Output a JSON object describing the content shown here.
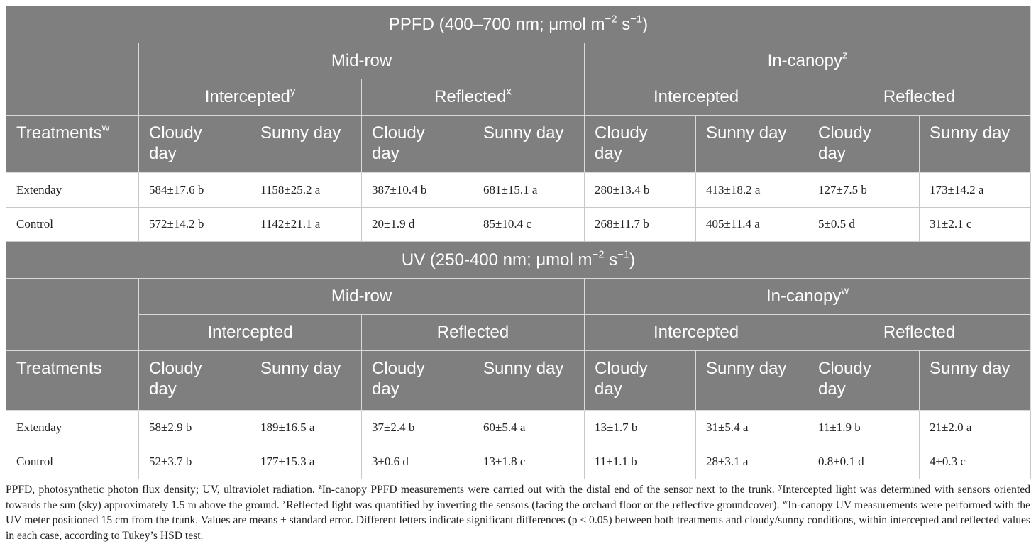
{
  "sections": [
    {
      "title": [
        {
          "text": "PPFD (400–700 nm; μmol m"
        },
        {
          "sup": "−2"
        },
        {
          "text": " s"
        },
        {
          "sup": "−1"
        },
        {
          "text": ")"
        }
      ],
      "groups": [
        {
          "label": [
            {
              "text": "Mid-row"
            }
          ],
          "subgroups": [
            [
              {
                "text": "Intercepted"
              },
              {
                "sup": "y"
              }
            ],
            [
              {
                "text": "Reflected"
              },
              {
                "sup": "x"
              }
            ]
          ]
        },
        {
          "label": [
            {
              "text": "In-canopy"
            },
            {
              "sup": "z"
            }
          ],
          "subgroups": [
            [
              {
                "text": "Intercepted"
              }
            ],
            [
              {
                "text": "Reflected"
              }
            ]
          ]
        }
      ],
      "row_header": [
        {
          "text": "Treatments"
        },
        {
          "sup": "w"
        }
      ],
      "columns": [
        "Cloudy day",
        "Sunny day",
        "Cloudy day",
        "Sunny day",
        "Cloudy day",
        "Sunny day",
        "Cloudy day",
        "Sunny day"
      ],
      "rows": [
        {
          "treatment": "Extenday",
          "values": [
            "584±17.6 b",
            "1158±25.2 a",
            "387±10.4 b",
            "681±15.1 a",
            "280±13.4 b",
            "413±18.2 a",
            "127±7.5 b",
            "173±14.2 a"
          ]
        },
        {
          "treatment": "Control",
          "values": [
            "572±14.2 b",
            "1142±21.1 a",
            "20±1.9 d",
            "85±10.4 c",
            "268±11.7 b",
            "405±11.4 a",
            "5±0.5 d",
            "31±2.1 c"
          ]
        }
      ]
    },
    {
      "title": [
        {
          "text": "UV (250-400 nm; μmol m"
        },
        {
          "sup": "−2"
        },
        {
          "text": " s"
        },
        {
          "sup": "−1"
        },
        {
          "text": ")"
        }
      ],
      "groups": [
        {
          "label": [
            {
              "text": "Mid-row"
            }
          ],
          "subgroups": [
            [
              {
                "text": "Intercepted"
              }
            ],
            [
              {
                "text": "Reflected"
              }
            ]
          ]
        },
        {
          "label": [
            {
              "text": "In-canopy"
            },
            {
              "sup": "w"
            }
          ],
          "subgroups": [
            [
              {
                "text": "Intercepted"
              }
            ],
            [
              {
                "text": "Reflected"
              }
            ]
          ]
        }
      ],
      "row_header": [
        {
          "text": "Treatments"
        }
      ],
      "columns": [
        "Cloudy day",
        "Sunny day",
        "Cloudy day",
        "Sunny day",
        "Cloudy day",
        "Sunny day",
        "Cloudy day",
        "Sunny day"
      ],
      "rows": [
        {
          "treatment": "Extenday",
          "values": [
            "58±2.9 b",
            "189±16.5 a",
            "37±2.4 b",
            "60±5.4 a",
            "13±1.7 b",
            "31±5.4 a",
            "11±1.9 b",
            "21±2.0 a"
          ]
        },
        {
          "treatment": "Control",
          "values": [
            "52±3.7 b",
            "177±15.3 a",
            "3±0.6 d",
            "13±1.8 c",
            "11±1.1 b",
            "28±3.1 a",
            "0.8±0.1 d",
            "4±0.3 c"
          ]
        }
      ]
    }
  ],
  "footnote": [
    {
      "text": "PPFD, photosynthetic photon flux density; UV, ultraviolet radiation. "
    },
    {
      "sup": "z"
    },
    {
      "text": "In-canopy PPFD measurements were carried out with the distal end of the sensor next to the trunk. "
    },
    {
      "sup": "y"
    },
    {
      "text": "Intercepted light was determined with sensors oriented towards the sun (sky) approximately 1.5 m above the ground. "
    },
    {
      "sup": "x"
    },
    {
      "text": "Reflected light was quantified by inverting the sensors (facing the orchard floor or the reflective groundcover). "
    },
    {
      "sup": "w"
    },
    {
      "text": "In-canopy UV measurements were performed with the UV meter positioned 15 cm from the trunk. Values are means ± standard error. Different letters indicate significant differences (p ≤ 0.05) between both treatments and cloudy/sunny conditions, within intercepted and reflected values in each case, according to Tukey’s HSD test."
    }
  ]
}
